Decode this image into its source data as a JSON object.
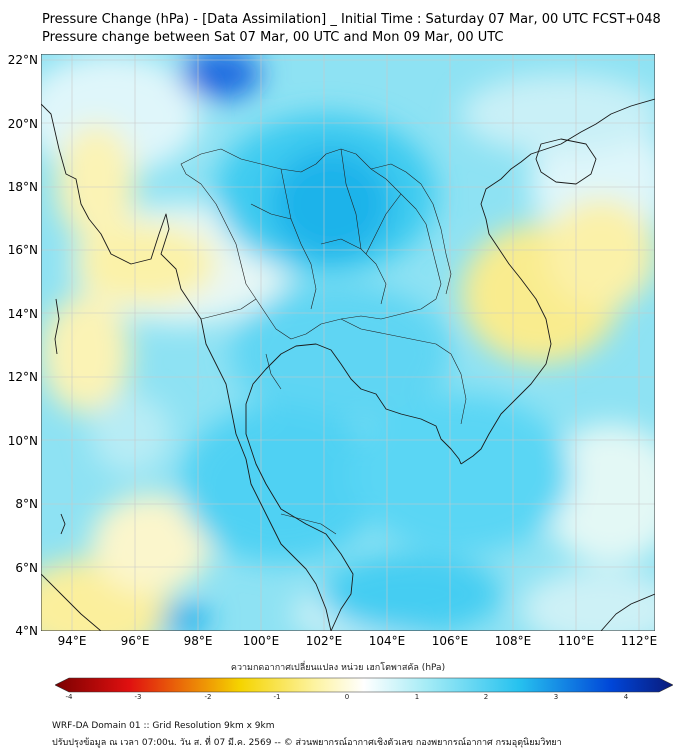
{
  "header": {
    "title_line1": "Pressure Change (hPa) - [Data Assimilation] _ Initial Time : Saturday 07 Mar, 00 UTC FCST+048",
    "title_line2": "Pressure change between Sat 07 Mar, 00 UTC and Mon 09 Mar, 00 UTC"
  },
  "map": {
    "lat_labels": [
      "22°N",
      "20°N",
      "18°N",
      "16°N",
      "14°N",
      "12°N",
      "10°N",
      "8°N",
      "6°N",
      "4°N"
    ],
    "lon_labels": [
      "94°E",
      "96°E",
      "98°E",
      "100°E",
      "102°E",
      "104°E",
      "106°E",
      "108°E",
      "110°E",
      "112°E"
    ],
    "lon_range": [
      93,
      112.5
    ],
    "lat_range": [
      4,
      22.2
    ]
  },
  "colorbar": {
    "label": "ความกดอากาศเปลี่ยนแปลง หน่วย เฮกโตพาสคัล (hPa)",
    "ticks": [
      "-4",
      "-3",
      "-2",
      "-1",
      "0",
      "1",
      "2",
      "3",
      "4"
    ],
    "range": [
      -4,
      4
    ],
    "colors": {
      "min": "#7a0000",
      "neg_mid": "#f5d400",
      "neg_low": "#fdf3a0",
      "zero": "#ffffff",
      "pos_low": "#a6ecf6",
      "pos_mid": "#27c2ef",
      "pos_high": "#0046d8",
      "max": "#0a1a7a"
    }
  },
  "footer": {
    "line1": "WRF-DA Domain 01 :: Grid Resolution 9km x 9km",
    "line2": "ปรับปรุงข้อมูล ณ เวลา 07:00น. วัน ส. ที่ 07 มี.ค. 2569 -- © ส่วนพยากรณ์อากาศเชิงตัวเลข กองพยากรณ์อากาศ กรมอุตุนิยมวิทยา"
  }
}
